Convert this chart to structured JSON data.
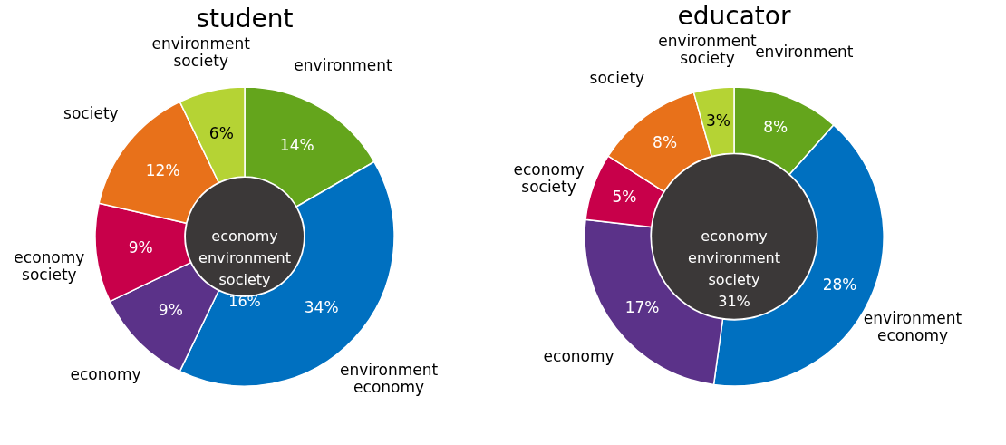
{
  "chart_data": [
    {
      "type": "donut",
      "title": "student",
      "categories": [
        "environment",
        "environment economy",
        "economy",
        "economy society",
        "society",
        "environment society"
      ],
      "values": [
        14,
        34,
        9,
        9,
        12,
        6
      ],
      "value_labels": [
        "14%",
        "34%",
        "9%",
        "9%",
        "12%",
        "6%"
      ],
      "colors": [
        "#64a51c",
        "#0070c0",
        "#5b3289",
        "#c8004a",
        "#e8711a",
        "#b5d334"
      ],
      "annotations": [
        "economy environment society 16%"
      ]
    },
    {
      "type": "donut",
      "title": "educator",
      "categories": [
        "environment",
        "environment economy",
        "economy",
        "economy society",
        "society",
        "environment society"
      ],
      "values": [
        8,
        28,
        17,
        5,
        8,
        3
      ],
      "value_labels": [
        "8%",
        "28%",
        "17%",
        "5%",
        "8%",
        "3%"
      ],
      "colors": [
        "#64a51c",
        "#0070c0",
        "#5b3289",
        "#c8004a",
        "#e8711a",
        "#b5d334"
      ],
      "annotations": [
        "economy environment society 31%"
      ]
    }
  ]
}
